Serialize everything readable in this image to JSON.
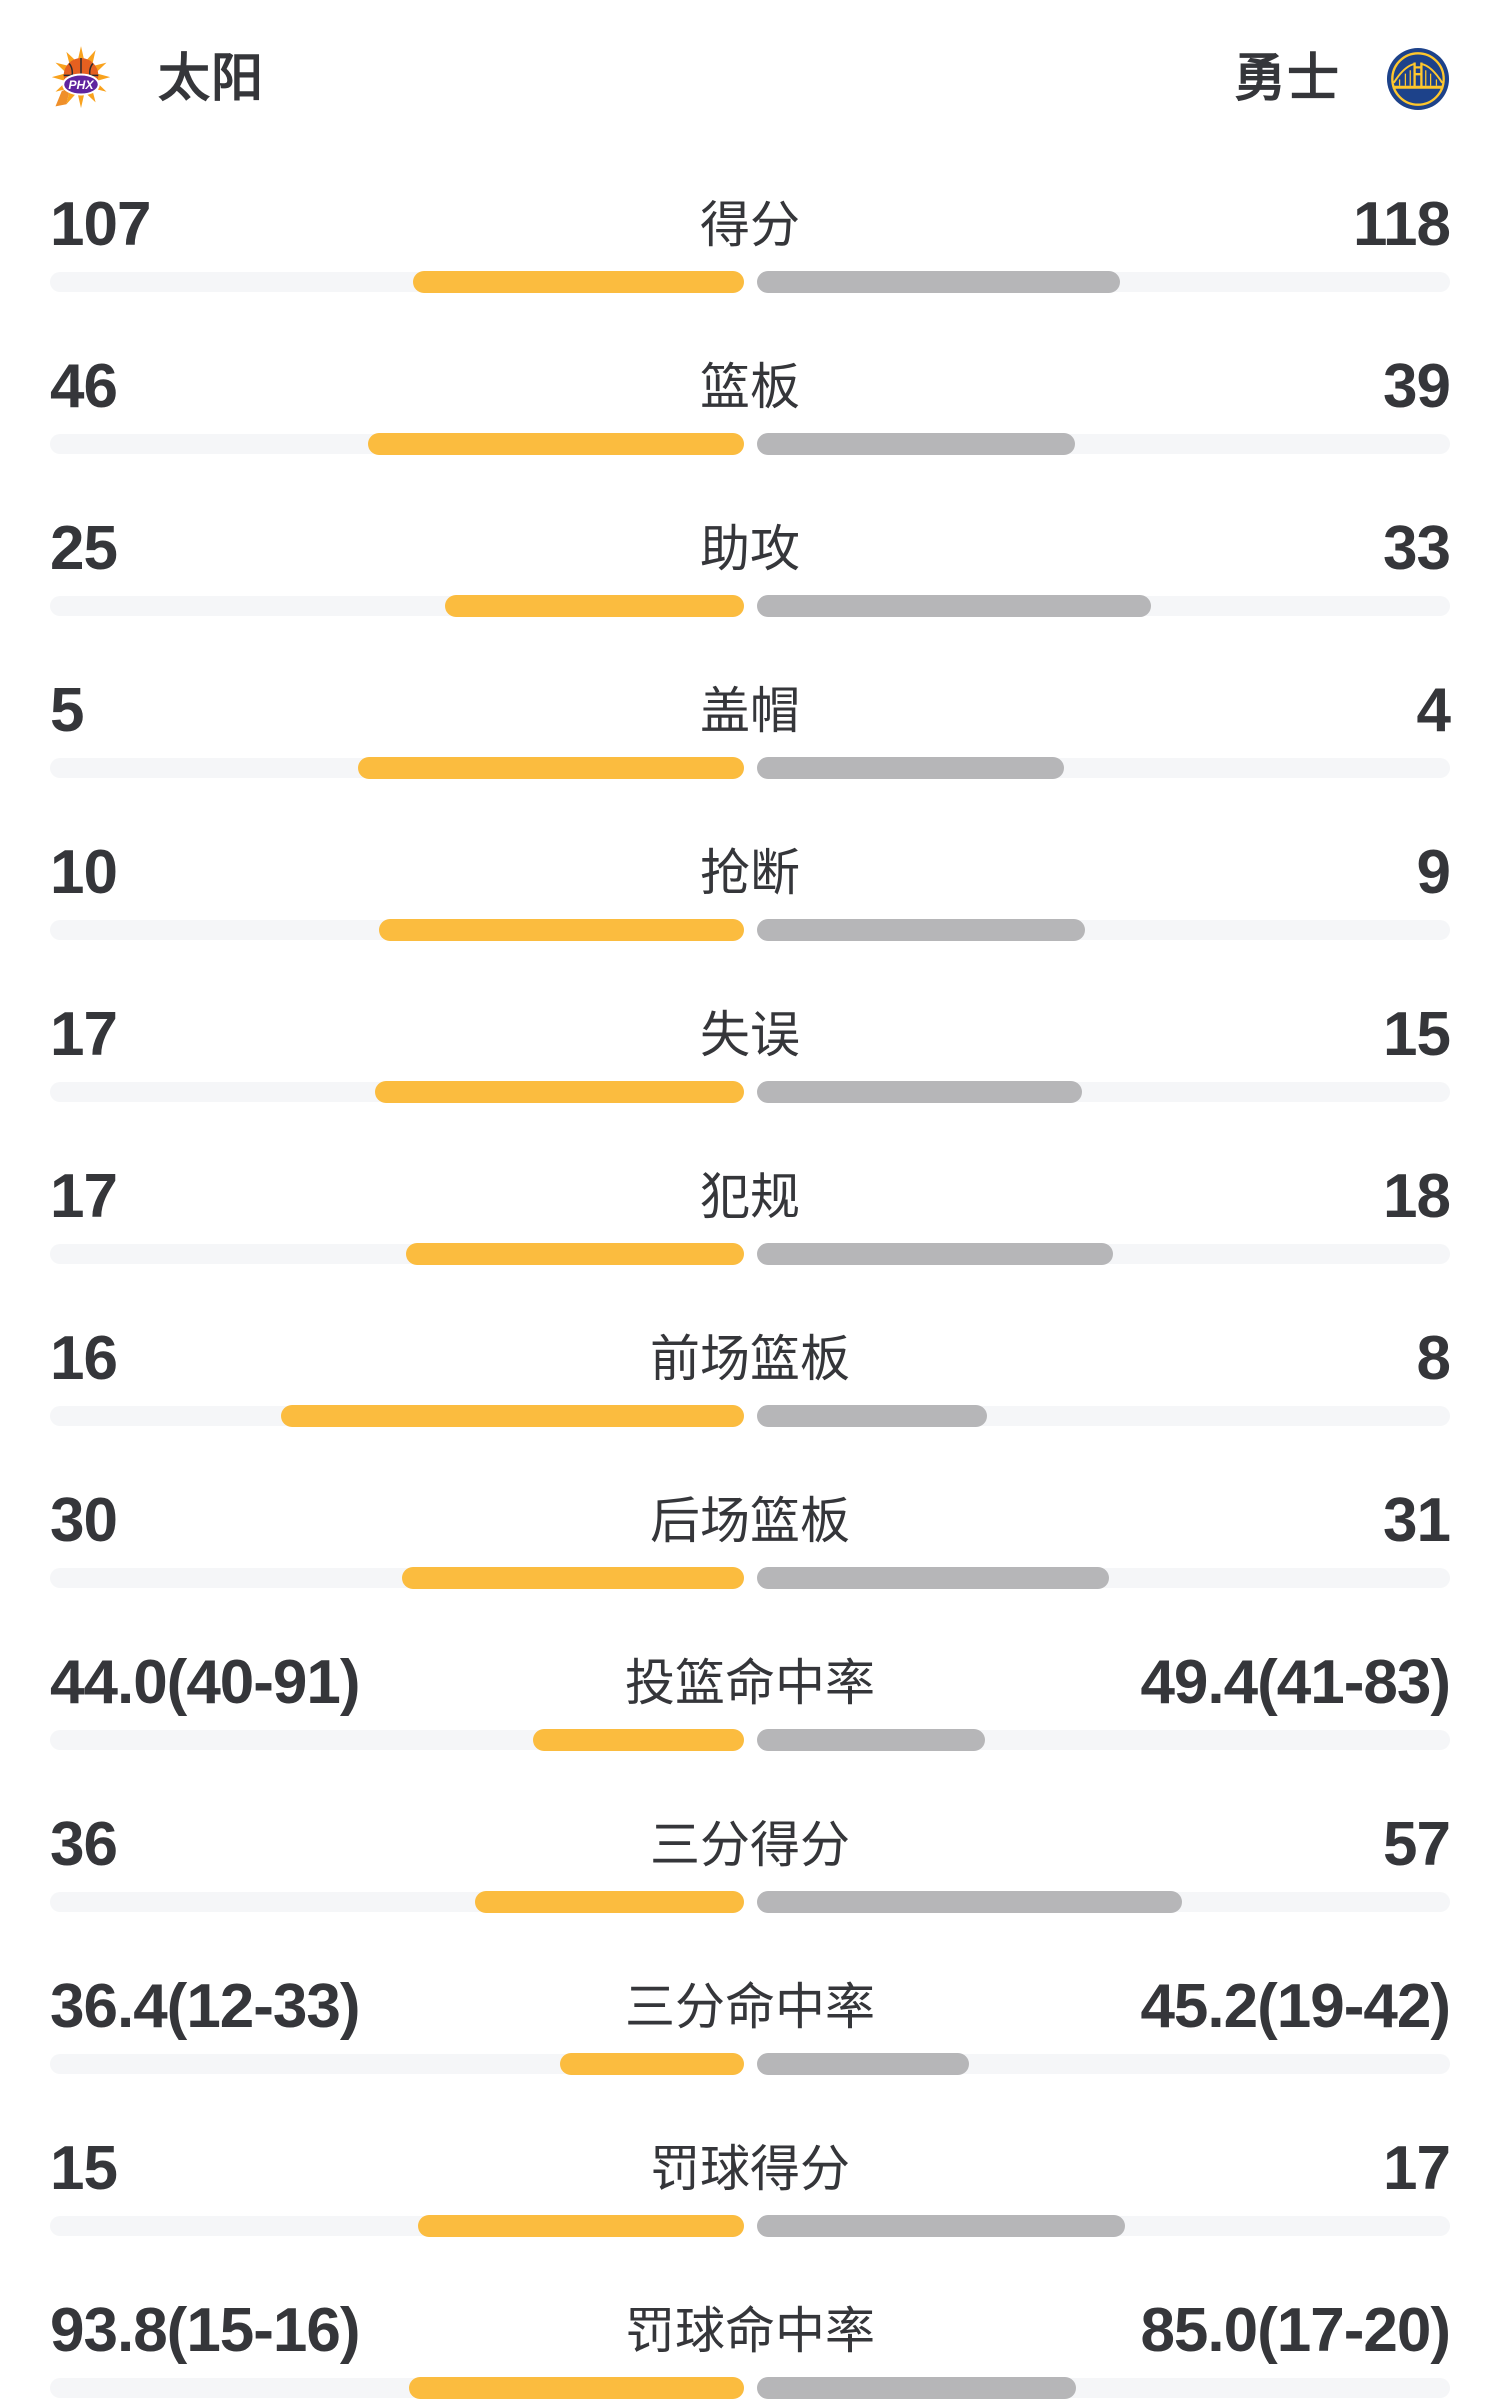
{
  "header": {
    "home": {
      "name": "太阳",
      "logo": "suns-logo",
      "logo_text": "PHX"
    },
    "away": {
      "name": "勇士",
      "logo": "warriors-logo"
    }
  },
  "colors": {
    "home_bar": "#fbbc3f",
    "away_bar": "#b6b6b8",
    "bar_track": "#f5f6f8",
    "text": "#35363a",
    "suns_orange": "#f9a21d",
    "suns_ball": "#e56020",
    "suns_purple": "#5f249f",
    "warriors_blue": "#1d428a",
    "warriors_gold": "#ffc72c"
  },
  "chart_data": {
    "type": "bar",
    "orientation": "horizontal-split",
    "legend_position": "header",
    "teams": [
      "太阳",
      "勇士"
    ],
    "bar_unit": "percent-of-half-track",
    "rows": [
      {
        "label": "得分",
        "home": "107",
        "away": "118",
        "home_bar_pct": 47.6,
        "away_bar_pct": 52.4
      },
      {
        "label": "篮板",
        "home": "46",
        "away": "39",
        "home_bar_pct": 54.1,
        "away_bar_pct": 45.9
      },
      {
        "label": "助攻",
        "home": "25",
        "away": "33",
        "home_bar_pct": 43.1,
        "away_bar_pct": 56.9
      },
      {
        "label": "盖帽",
        "home": "5",
        "away": "4",
        "home_bar_pct": 55.6,
        "away_bar_pct": 44.4
      },
      {
        "label": "抢断",
        "home": "10",
        "away": "9",
        "home_bar_pct": 52.6,
        "away_bar_pct": 47.4
      },
      {
        "label": "失误",
        "home": "17",
        "away": "15",
        "home_bar_pct": 53.1,
        "away_bar_pct": 46.9
      },
      {
        "label": "犯规",
        "home": "17",
        "away": "18",
        "home_bar_pct": 48.6,
        "away_bar_pct": 51.4
      },
      {
        "label": "前场篮板",
        "home": "16",
        "away": "8",
        "home_bar_pct": 66.7,
        "away_bar_pct": 33.3
      },
      {
        "label": "后场篮板",
        "home": "30",
        "away": "31",
        "home_bar_pct": 49.2,
        "away_bar_pct": 50.8
      },
      {
        "label": "投篮命中率",
        "home": "44.0(40-91)",
        "away": "49.4(41-83)",
        "home_bar_pct": 30.4,
        "away_bar_pct": 33.0
      },
      {
        "label": "三分得分",
        "home": "36",
        "away": "57",
        "home_bar_pct": 38.7,
        "away_bar_pct": 61.3
      },
      {
        "label": "三分命中率",
        "home": "36.4(12-33)",
        "away": "45.2(19-42)",
        "home_bar_pct": 26.5,
        "away_bar_pct": 30.7
      },
      {
        "label": "罚球得分",
        "home": "15",
        "away": "17",
        "home_bar_pct": 46.9,
        "away_bar_pct": 53.1
      },
      {
        "label": "罚球命中率",
        "home": "93.8(15-16)",
        "away": "85.0(17-20)",
        "home_bar_pct": 48.3,
        "away_bar_pct": 46.0
      }
    ]
  }
}
